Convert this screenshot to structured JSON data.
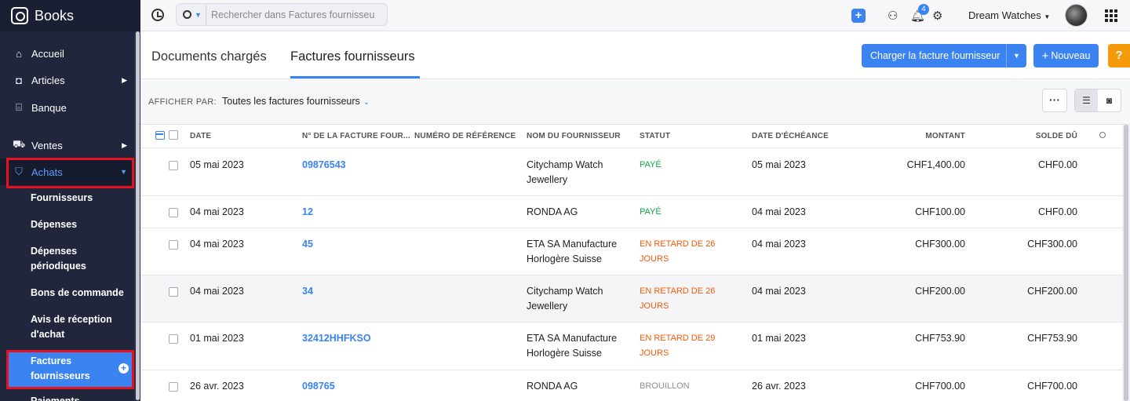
{
  "app": {
    "name": "Books"
  },
  "sidebar": {
    "items": [
      {
        "label": "Accueil",
        "icon": "home-icon"
      },
      {
        "label": "Articles",
        "icon": "bag-icon"
      },
      {
        "label": "Banque",
        "icon": "bank-icon"
      },
      {
        "label": "Ventes",
        "icon": "cart-icon"
      },
      {
        "label": "Achats",
        "icon": "shopping-bag-icon"
      }
    ],
    "sub_items": [
      "Fournisseurs",
      "Dépenses",
      "Dépenses périodiques",
      "Bons de commande",
      "Avis de réception d'achat",
      "Factures fournisseurs",
      "Paiements"
    ]
  },
  "topbar": {
    "search_placeholder": "Rechercher dans Factures fournisseurs",
    "notification_count": "4",
    "org_name": "Dream Watches"
  },
  "header": {
    "tabs": [
      "Documents chargés",
      "Factures fournisseurs"
    ],
    "upload_label": "Charger la facture fournisseur",
    "new_label": "Nouveau",
    "help_label": "?"
  },
  "filter": {
    "label": "AFFICHER PAR:",
    "value": "Toutes les factures fournisseurs"
  },
  "table": {
    "columns": [
      "DATE",
      "N° DE LA FACTURE FOUR...",
      "NUMÉRO DE RÉFÉRENCE",
      "NOM DU FOURNISSEUR",
      "STATUT",
      "DATE D'ÉCHÉANCE",
      "MONTANT",
      "SOLDE DÛ"
    ],
    "rows": [
      {
        "date": "05 mai 2023",
        "num": "09876543",
        "ref": "",
        "vendor": "Citychamp Watch Jewellery",
        "status": "PAYÉ",
        "status_type": "paid",
        "due": "05 mai 2023",
        "amount": "CHF1,400.00",
        "balance": "CHF0.00"
      },
      {
        "date": "04 mai 2023",
        "num": "12",
        "ref": "",
        "vendor": "RONDA AG",
        "status": "PAYÉ",
        "status_type": "paid",
        "due": "04 mai 2023",
        "amount": "CHF100.00",
        "balance": "CHF0.00"
      },
      {
        "date": "04 mai 2023",
        "num": "45",
        "ref": "",
        "vendor": "ETA SA Manufacture Horlogère Suisse",
        "status": "EN RETARD DE 26 JOURS",
        "status_type": "late",
        "due": "04 mai 2023",
        "amount": "CHF300.00",
        "balance": "CHF300.00"
      },
      {
        "date": "04 mai 2023",
        "num": "34",
        "ref": "",
        "vendor": "Citychamp Watch Jewellery",
        "status": "EN RETARD DE 26 JOURS",
        "status_type": "late",
        "due": "04 mai 2023",
        "amount": "CHF200.00",
        "balance": "CHF200.00"
      },
      {
        "date": "01 mai 2023",
        "num": "32412HHFKSO",
        "ref": "",
        "vendor": "ETA SA Manufacture Horlogère Suisse",
        "status": "EN RETARD DE 29 JOURS",
        "status_type": "late",
        "due": "01 mai 2023",
        "amount": "CHF753.90",
        "balance": "CHF753.90"
      },
      {
        "date": "26 avr. 2023",
        "num": "098765",
        "ref": "",
        "vendor": "RONDA AG",
        "status": "BROUILLON",
        "status_type": "draft",
        "due": "26 avr. 2023",
        "amount": "CHF700.00",
        "balance": "CHF700.00"
      }
    ]
  },
  "colors": {
    "accent": "#3a83f1",
    "sidebar_bg": "#21263c",
    "paid": "#15a34a",
    "late": "#f05a0a",
    "highlight": "#e6131f",
    "help": "#f59a0b"
  }
}
